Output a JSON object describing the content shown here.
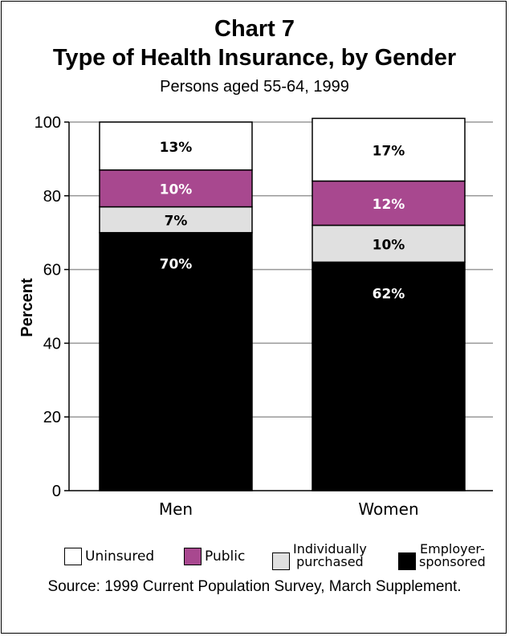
{
  "chart_data": {
    "type": "bar",
    "stacked": true,
    "title": "Chart 7",
    "subtitle_main": "Type of Health Insurance, by Gender",
    "subtitle": "Persons aged 55-64, 1999",
    "ylabel": "Percent",
    "xlabel": "",
    "ylim": [
      0,
      100
    ],
    "yticks": [
      0,
      20,
      40,
      60,
      80,
      100
    ],
    "grid": true,
    "categories": [
      "Men",
      "Women"
    ],
    "series": [
      {
        "name": "Employer-sponsored",
        "color": "#000000",
        "label_color": "#ffffff",
        "values": [
          70,
          62
        ],
        "labels": [
          "70%",
          "62%"
        ]
      },
      {
        "name": "Individually purchased",
        "color": "#e0e0e0",
        "label_color": "#000000",
        "values": [
          7,
          10
        ],
        "labels": [
          "7%",
          "10%"
        ]
      },
      {
        "name": "Public",
        "color": "#a8488f",
        "label_color": "#ffffff",
        "values": [
          10,
          12
        ],
        "labels": [
          "10%",
          "12%"
        ]
      },
      {
        "name": "Uninsured",
        "color": "#ffffff",
        "label_color": "#000000",
        "values": [
          13,
          17
        ],
        "labels": [
          "13%",
          "17%"
        ]
      }
    ],
    "legend": [
      {
        "label": "Uninsured",
        "color": "#ffffff"
      },
      {
        "label": "Public",
        "color": "#a8488f"
      },
      {
        "label_line1": "Individually",
        "label_line2": "purchased",
        "color": "#e0e0e0"
      },
      {
        "label_line1": "Employer-",
        "label_line2": "sponsored",
        "color": "#000000"
      }
    ],
    "legend_position": "bottom",
    "source": "Source: 1999 Current Population Survey, March Supplement."
  }
}
